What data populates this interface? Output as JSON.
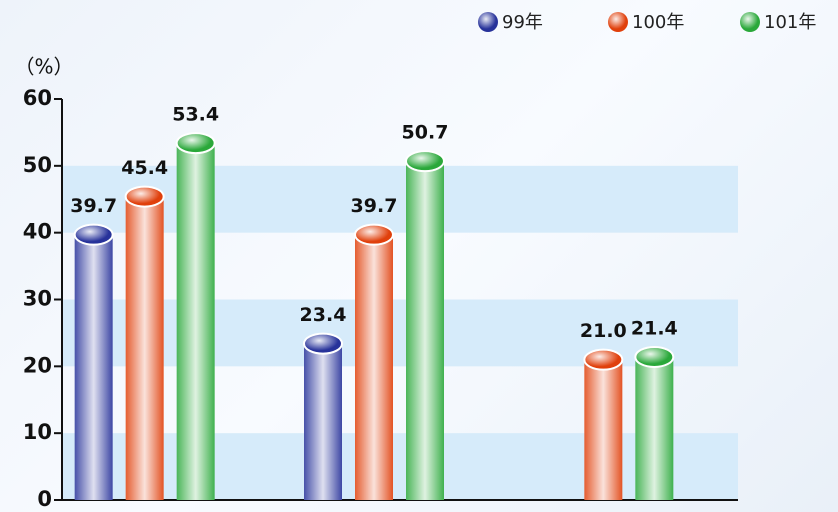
{
  "chart_data": {
    "type": "bar",
    "y_label": "（%）",
    "categories": [
      null,
      null,
      null
    ],
    "series": [
      {
        "name": "99年",
        "color": "#27329a",
        "values": [
          39.7,
          23.4,
          null
        ]
      },
      {
        "name": "100年",
        "color": "#e0400c",
        "values": [
          45.4,
          39.7,
          21.0
        ],
        "value_labels": [
          "45.4",
          "39.7",
          "21.0"
        ]
      },
      {
        "name": "101年",
        "color": "#2aa83a",
        "values": [
          53.4,
          50.7,
          21.4
        ]
      }
    ],
    "ylim": [
      0,
      60
    ],
    "yticks": [
      0,
      10,
      20,
      30,
      40,
      50,
      60
    ],
    "stripes": true,
    "legend": "top-right"
  }
}
